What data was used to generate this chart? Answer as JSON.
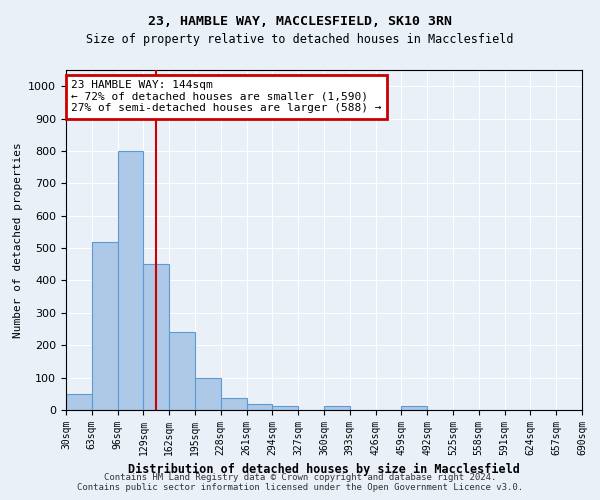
{
  "title_line1": "23, HAMBLE WAY, MACCLESFIELD, SK10 3RN",
  "title_line2": "Size of property relative to detached houses in Macclesfield",
  "xlabel": "Distribution of detached houses by size in Macclesfield",
  "ylabel": "Number of detached properties",
  "bar_values": [
    50,
    520,
    800,
    450,
    240,
    98,
    38,
    18,
    12,
    0,
    12,
    0,
    0,
    12,
    0,
    0,
    0,
    0,
    0,
    0
  ],
  "bar_labels": [
    "30sqm",
    "63sqm",
    "96sqm",
    "129sqm",
    "162sqm",
    "195sqm",
    "228sqm",
    "261sqm",
    "294sqm",
    "327sqm",
    "360sqm",
    "393sqm",
    "426sqm",
    "459sqm",
    "492sqm",
    "525sqm",
    "558sqm",
    "591sqm",
    "624sqm",
    "657sqm",
    "690sqm"
  ],
  "bar_color": "#aec8e8",
  "bar_edge_color": "#5b9bd5",
  "vline_x": 3.5,
  "vline_color": "#cc0000",
  "ylim": [
    0,
    1050
  ],
  "yticks": [
    0,
    100,
    200,
    300,
    400,
    500,
    600,
    700,
    800,
    900,
    1000
  ],
  "annotation_title": "23 HAMBLE WAY: 144sqm",
  "annotation_line1": "← 72% of detached houses are smaller (1,590)",
  "annotation_line2": "27% of semi-detached houses are larger (588) →",
  "annotation_box_color": "#cc0000",
  "footnote1": "Contains HM Land Registry data © Crown copyright and database right 2024.",
  "footnote2": "Contains public sector information licensed under the Open Government Licence v3.0.",
  "bg_color": "#eaf0f8",
  "plot_bg_color": "#eaf0f8",
  "grid_color": "#ffffff"
}
